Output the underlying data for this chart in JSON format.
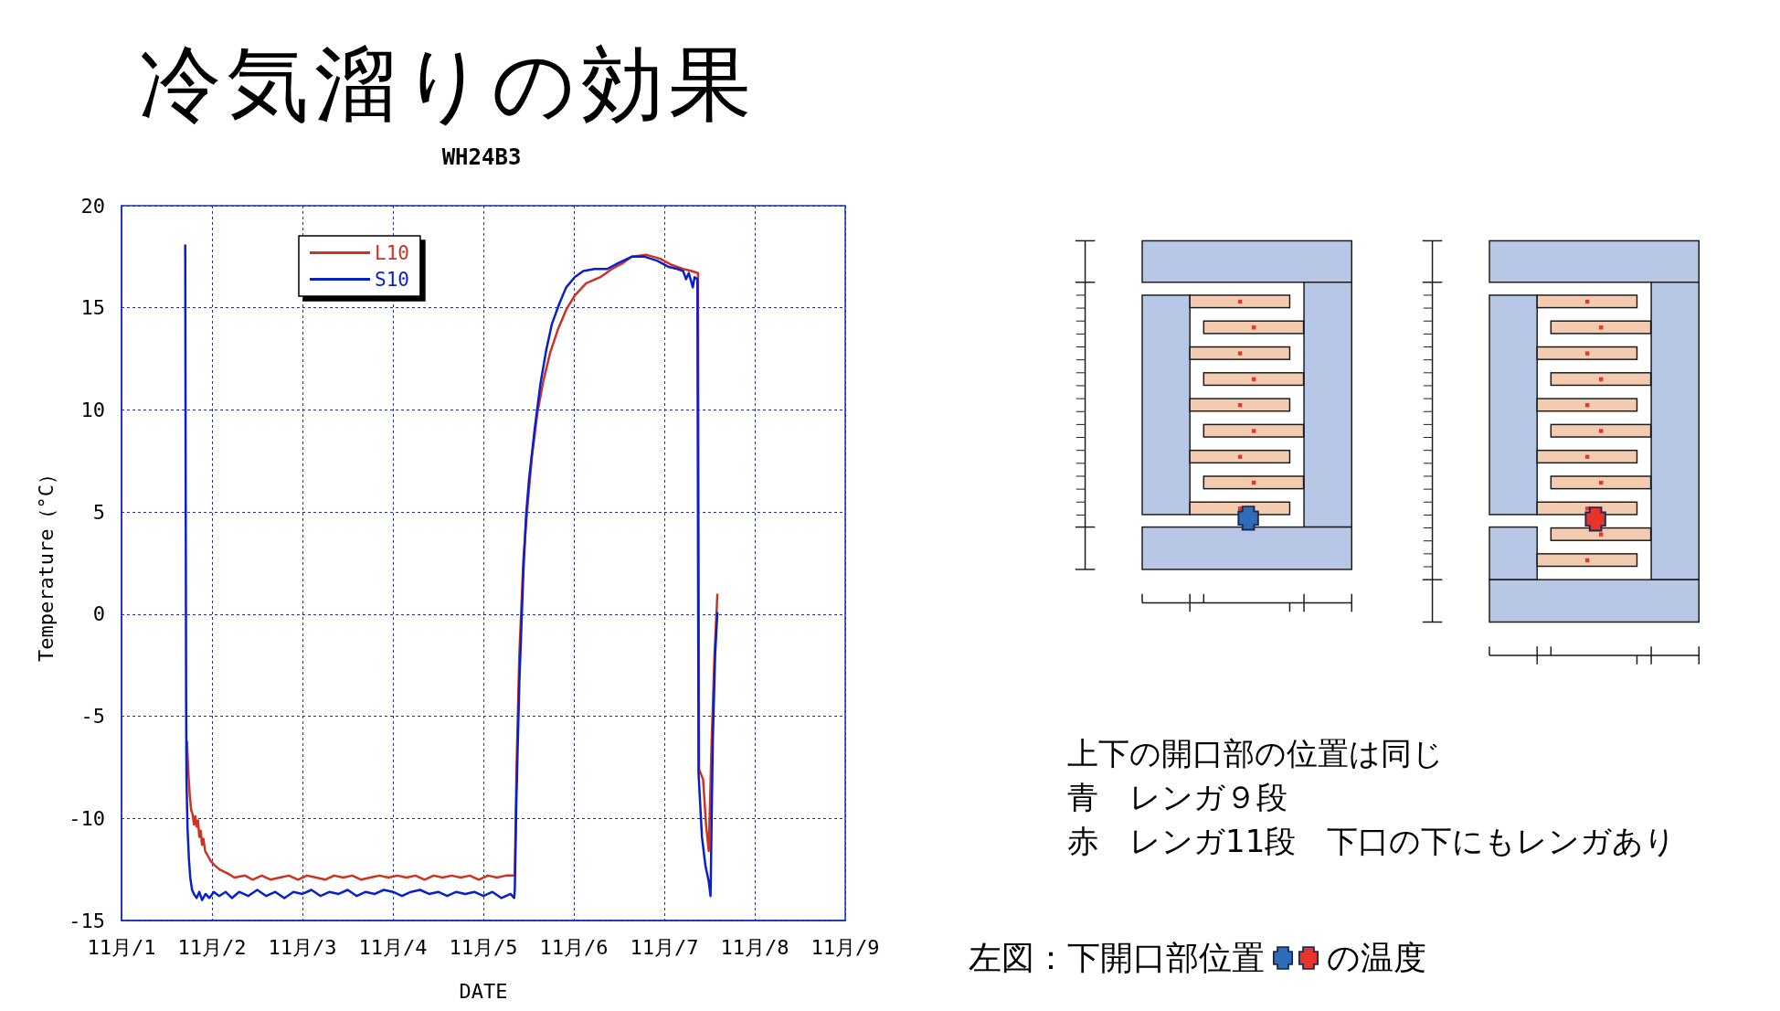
{
  "chart_data": {
    "type": "line",
    "title": "冷気溜りの効果",
    "subtitle": "WH24B3",
    "xlabel": "DATE",
    "ylabel": "Temperature（°C）",
    "xlim": [
      "--11-01",
      "--11-09"
    ],
    "xticks": [
      {
        "value": "--11-01",
        "label": "11月/1"
      },
      {
        "value": "--11-02",
        "label": "11月/2"
      },
      {
        "value": "--11-03",
        "label": "11月/3"
      },
      {
        "value": "--11-04",
        "label": "11月/4"
      },
      {
        "value": "--11-05",
        "label": "11月/5"
      },
      {
        "value": "--11-06",
        "label": "11月/6"
      },
      {
        "value": "--11-07",
        "label": "11月/7"
      },
      {
        "value": "--11-08",
        "label": "11月/8"
      },
      {
        "value": "--11-09",
        "label": "11月/9"
      }
    ],
    "ylim": [
      -15,
      20
    ],
    "yticks": [
      -15,
      -10,
      -5,
      0,
      5,
      10,
      15,
      20
    ],
    "grid": true,
    "legend": "top left",
    "series": [
      {
        "name": "L10",
        "color": "#cc3322",
        "x": [
          "--11-01T17:21",
          "--11-01T17:46",
          "--11-01T18:07",
          "--11-01T18:29",
          "--11-01T18:52",
          "--11-01T19:12",
          "--11-01T19:34",
          "--11-01T19:55",
          "--11-01T20:17",
          "--11-01T20:38",
          "--11-01T20:59",
          "--11-01T21:22",
          "--11-01T21:43",
          "--11-01T22:12",
          "--11-01T22:48",
          "--11-01T23:41",
          "--11-02T00:43",
          "--11-02T01:58",
          "--11-02T03:07",
          "--11-02T04:13",
          "--11-02T06:00",
          "--11-02T08:46",
          "--11-02T10:48",
          "--11-02T13:12",
          "--11-02T15:36",
          "--11-02T18:00",
          "--11-02T20:24",
          "--11-02T22:48",
          "--11-03T01:12",
          "--11-03T03:36",
          "--11-03T06:00",
          "--11-03T08:24",
          "--11-03T10:48",
          "--11-03T13:12",
          "--11-03T15:36",
          "--11-03T18:00",
          "--11-03T20:24",
          "--11-03T22:48",
          "--11-04T01:12",
          "--11-04T03:36",
          "--11-04T06:00",
          "--11-04T08:24",
          "--11-04T10:48",
          "--11-04T13:12",
          "--11-04T15:36",
          "--11-04T18:00",
          "--11-04T20:24",
          "--11-04T22:48",
          "--11-05T01:12",
          "--11-05T03:36",
          "--11-05T06:00",
          "--11-05T08:20",
          "--11-05T08:47",
          "--11-05T09:32",
          "--11-05T10:37",
          "--11-05T11:40",
          "--11-05T12:52",
          "--11-05T14:22",
          "--11-05T15:53",
          "--11-05T17:43",
          "--11-05T19:41",
          "--11-05T21:58",
          "--11-06T00:13",
          "--11-06T03:16",
          "--11-06T07:02",
          "--11-06T10:05",
          "--11-06T13:06",
          "--11-06T15:22",
          "--11-06T19:09",
          "--11-06T22:57",
          "--11-07T01:58",
          "--11-07T05:00",
          "--11-07T07:16",
          "--11-07T08:56",
          "--11-07T09:14",
          "--11-07T10:18",
          "--11-07T11:04",
          "--11-07T11:48",
          "--11-07T12:34",
          "--11-07T13:19",
          "--11-07T14:05"
        ],
        "values": [
          -6.2,
          -7.9,
          -8.9,
          -9.6,
          -9.8,
          -10.3,
          -9.9,
          -10.4,
          -10.1,
          -10.9,
          -10.6,
          -11.3,
          -11.0,
          -11.6,
          -11.8,
          -12.1,
          -12.3,
          -12.5,
          -12.6,
          -12.7,
          -12.9,
          -12.8,
          -13.0,
          -12.8,
          -13.0,
          -12.9,
          -12.8,
          -13.0,
          -12.8,
          -12.9,
          -13.0,
          -12.8,
          -12.9,
          -12.8,
          -13.0,
          -12.9,
          -12.8,
          -12.9,
          -12.8,
          -12.9,
          -12.8,
          -13.0,
          -12.8,
          -12.9,
          -12.8,
          -12.9,
          -12.8,
          -13.0,
          -12.8,
          -12.9,
          -12.8,
          -12.8,
          -7.6,
          -2.0,
          2.7,
          5.2,
          7.7,
          9.9,
          11.4,
          12.8,
          13.9,
          14.9,
          15.6,
          16.2,
          16.5,
          16.9,
          17.2,
          17.5,
          17.6,
          17.4,
          17.1,
          16.9,
          16.8,
          16.7,
          -7.6,
          -8.1,
          -10.3,
          -11.6,
          -6.2,
          -2.0,
          1.0
        ]
      },
      {
        "name": "S10",
        "color": "#0a1fcc",
        "x": [
          "--11-01T16:54",
          "--11-01T17:02",
          "--11-01T17:08",
          "--11-01T17:14",
          "--11-01T17:31",
          "--11-01T17:53",
          "--11-01T18:14",
          "--11-01T18:43",
          "--11-01T19:12",
          "--11-01T19:55",
          "--11-01T20:38",
          "--11-01T21:22",
          "--11-01T22:19",
          "--11-01T23:17",
          "--11-02T00:29",
          "--11-02T01:55",
          "--11-02T03:36",
          "--11-02T05:17",
          "--11-02T07:12",
          "--11-02T09:36",
          "--11-02T12:00",
          "--11-02T14:24",
          "--11-02T16:48",
          "--11-02T19:12",
          "--11-02T21:36",
          "--11-03T00:00",
          "--11-03T02:24",
          "--11-03T04:48",
          "--11-03T07:12",
          "--11-03T09:36",
          "--11-03T12:00",
          "--11-03T14:24",
          "--11-03T16:48",
          "--11-03T19:12",
          "--11-03T21:36",
          "--11-04T00:00",
          "--11-04T02:24",
          "--11-04T04:48",
          "--11-04T07:12",
          "--11-04T09:36",
          "--11-04T12:00",
          "--11-04T14:24",
          "--11-04T16:48",
          "--11-04T19:12",
          "--11-04T21:36",
          "--11-05T00:00",
          "--11-05T02:24",
          "--11-05T04:48",
          "--11-05T07:12",
          "--11-05T08:10",
          "--11-05T08:20",
          "--11-05T08:47",
          "--11-05T09:32",
          "--11-05T10:37",
          "--11-05T11:21",
          "--11-05T12:07",
          "--11-05T13:38",
          "--11-05T15:09",
          "--11-05T16:39",
          "--11-05T18:10",
          "--11-05T20:08",
          "--11-05T21:58",
          "--11-06T00:13",
          "--11-06T02:30",
          "--11-06T05:31",
          "--11-06T08:51",
          "--11-06T11:53",
          "--11-06T15:22",
          "--11-06T18:50",
          "--11-06T22:11",
          "--11-07T01:12",
          "--11-07T03:29",
          "--11-07T05:00",
          "--11-07T05:46",
          "--11-07T06:30",
          "--11-07T07:34",
          "--11-07T08:01",
          "--11-07T08:47",
          "--11-07T09:05",
          "--11-07T09:59",
          "--11-07T10:54",
          "--11-07T11:48",
          "--11-07T12:16",
          "--11-07T12:52",
          "--11-07T13:29",
          "--11-07T14:05"
        ],
        "values": [
          18.1,
          5.0,
          -4.0,
          -8.1,
          -10.5,
          -12.0,
          -12.9,
          -13.5,
          -13.7,
          -13.9,
          -13.6,
          -14.0,
          -13.7,
          -13.9,
          -13.6,
          -13.8,
          -13.6,
          -13.9,
          -13.6,
          -13.8,
          -13.5,
          -13.8,
          -13.6,
          -13.9,
          -13.6,
          -13.7,
          -13.5,
          -13.8,
          -13.6,
          -13.7,
          -13.5,
          -13.8,
          -13.6,
          -13.7,
          -13.5,
          -13.6,
          -13.8,
          -13.6,
          -13.5,
          -13.7,
          -13.6,
          -13.8,
          -13.6,
          -13.7,
          -13.6,
          -13.8,
          -13.6,
          -13.9,
          -13.7,
          -13.9,
          -13.5,
          -8.9,
          -3.4,
          2.1,
          4.9,
          6.6,
          9.1,
          11.3,
          12.9,
          14.2,
          15.2,
          16.0,
          16.5,
          16.8,
          16.9,
          16.9,
          17.2,
          17.5,
          17.5,
          17.3,
          17.0,
          16.9,
          16.8,
          16.4,
          16.7,
          16.0,
          16.5,
          16.4,
          -7.8,
          -10.9,
          -12.3,
          -13.1,
          -13.8,
          -6.2,
          -2.0,
          0.1
        ]
      }
    ],
    "annotations": [
      "上下の開口部の位置は同じ",
      "青　レンガ９段",
      "赤　レンガ11段　下口の下にもレンガあり",
      "左図：下開口部位置",
      "の温度"
    ]
  }
}
